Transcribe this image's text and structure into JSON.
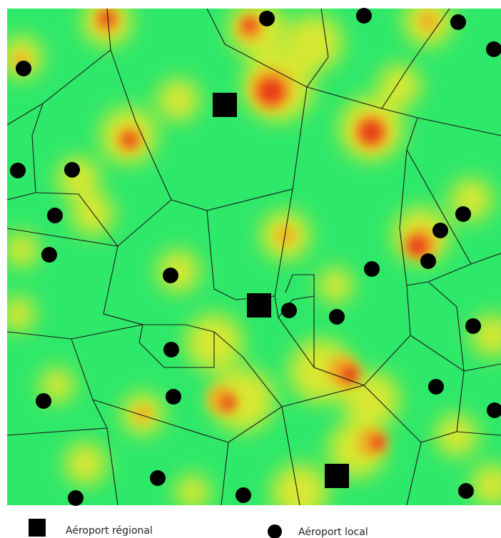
{
  "legend": [
    {
      "label": "Aéroport régional"
    },
    {
      "label": "Aéroport local"
    }
  ]
}
